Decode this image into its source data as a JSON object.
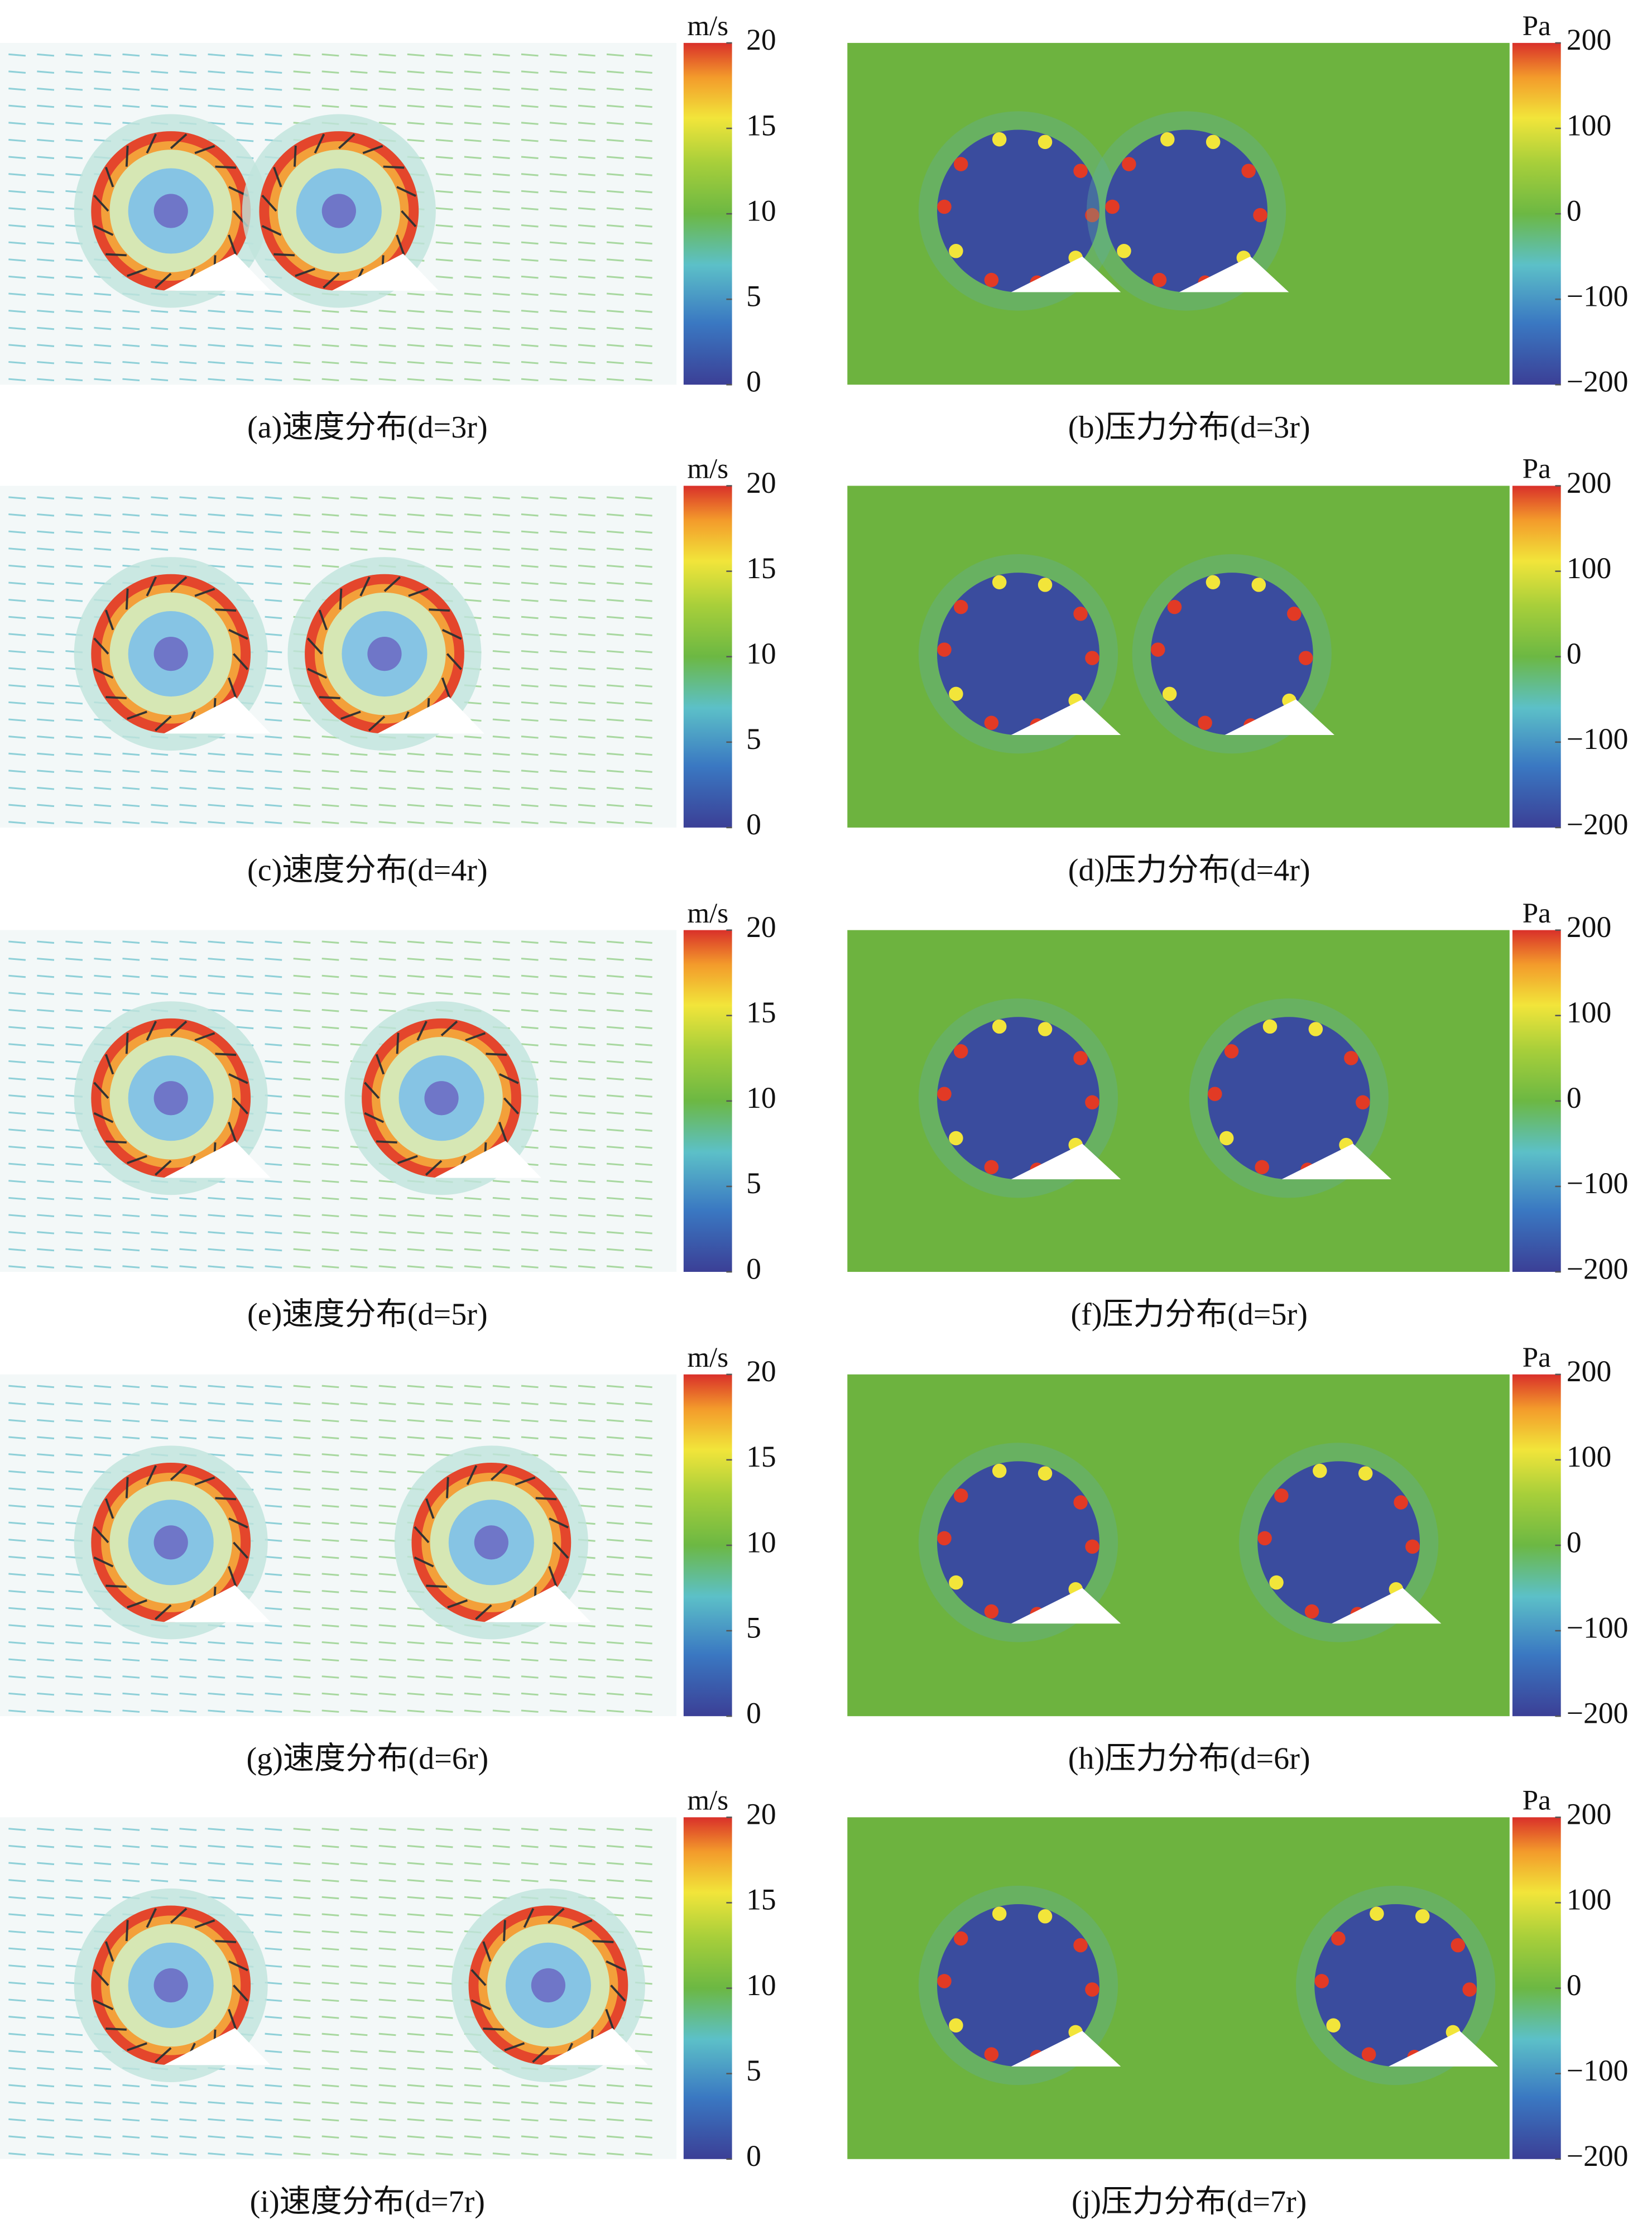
{
  "panels": [
    {
      "caption": "(a)速度分布(d=3r)",
      "colorbar": {
        "unit": "m/s",
        "lim": [
          0,
          20
        ],
        "ticks": [
          0,
          5,
          10,
          15,
          20
        ]
      }
    },
    {
      "caption": "(b)压力分布(d=3r)",
      "colorbar": {
        "unit": "Pa",
        "lim": [
          -200,
          200
        ],
        "ticks": [
          {
            "value": -200,
            "label": "−200"
          },
          {
            "value": -100,
            "label": "−100"
          },
          0,
          100,
          200
        ]
      }
    },
    {
      "caption": "(c)速度分布(d=4r)",
      "colorbar": {
        "unit": "m/s",
        "lim": [
          0,
          20
        ],
        "ticks": [
          0,
          5,
          10,
          15,
          20
        ]
      }
    },
    {
      "caption": "(d)压力分布(d=4r)",
      "colorbar": {
        "unit": "Pa",
        "lim": [
          -200,
          200
        ],
        "ticks": [
          {
            "value": -200,
            "label": "−200"
          },
          {
            "value": -100,
            "label": "−100"
          },
          0,
          100,
          200
        ]
      }
    },
    {
      "caption": "(e)速度分布(d=5r)",
      "colorbar": {
        "unit": "m/s",
        "lim": [
          0,
          20
        ],
        "ticks": [
          0,
          5,
          10,
          15,
          20
        ]
      }
    },
    {
      "caption": "(f)压力分布(d=5r)",
      "colorbar": {
        "unit": "Pa",
        "lim": [
          -200,
          200
        ],
        "ticks": [
          {
            "value": -200,
            "label": "−200"
          },
          {
            "value": -100,
            "label": "−100"
          },
          0,
          100,
          200
        ]
      }
    },
    {
      "caption": "(g)速度分布(d=6r)",
      "colorbar": {
        "unit": "m/s",
        "lim": [
          0,
          20
        ],
        "ticks": [
          0,
          5,
          10,
          15,
          20
        ]
      }
    },
    {
      "caption": "(h)压力分布(d=6r)",
      "colorbar": {
        "unit": "Pa",
        "lim": [
          -200,
          200
        ],
        "ticks": [
          {
            "value": -200,
            "label": "−200"
          },
          {
            "value": -100,
            "label": "−100"
          },
          0,
          100,
          200
        ]
      }
    },
    {
      "caption": "(i)速度分布(d=7r)",
      "colorbar": {
        "unit": "m/s",
        "lim": [
          0,
          20
        ],
        "ticks": [
          0,
          5,
          10,
          15,
          20
        ]
      }
    },
    {
      "caption": "(j)压力分布(d=7r)",
      "colorbar": {
        "unit": "Pa",
        "lim": [
          -200,
          200
        ],
        "ticks": [
          {
            "value": -200,
            "label": "−200"
          },
          {
            "value": -100,
            "label": "−100"
          },
          0,
          100,
          200
        ]
      }
    }
  ]
}
